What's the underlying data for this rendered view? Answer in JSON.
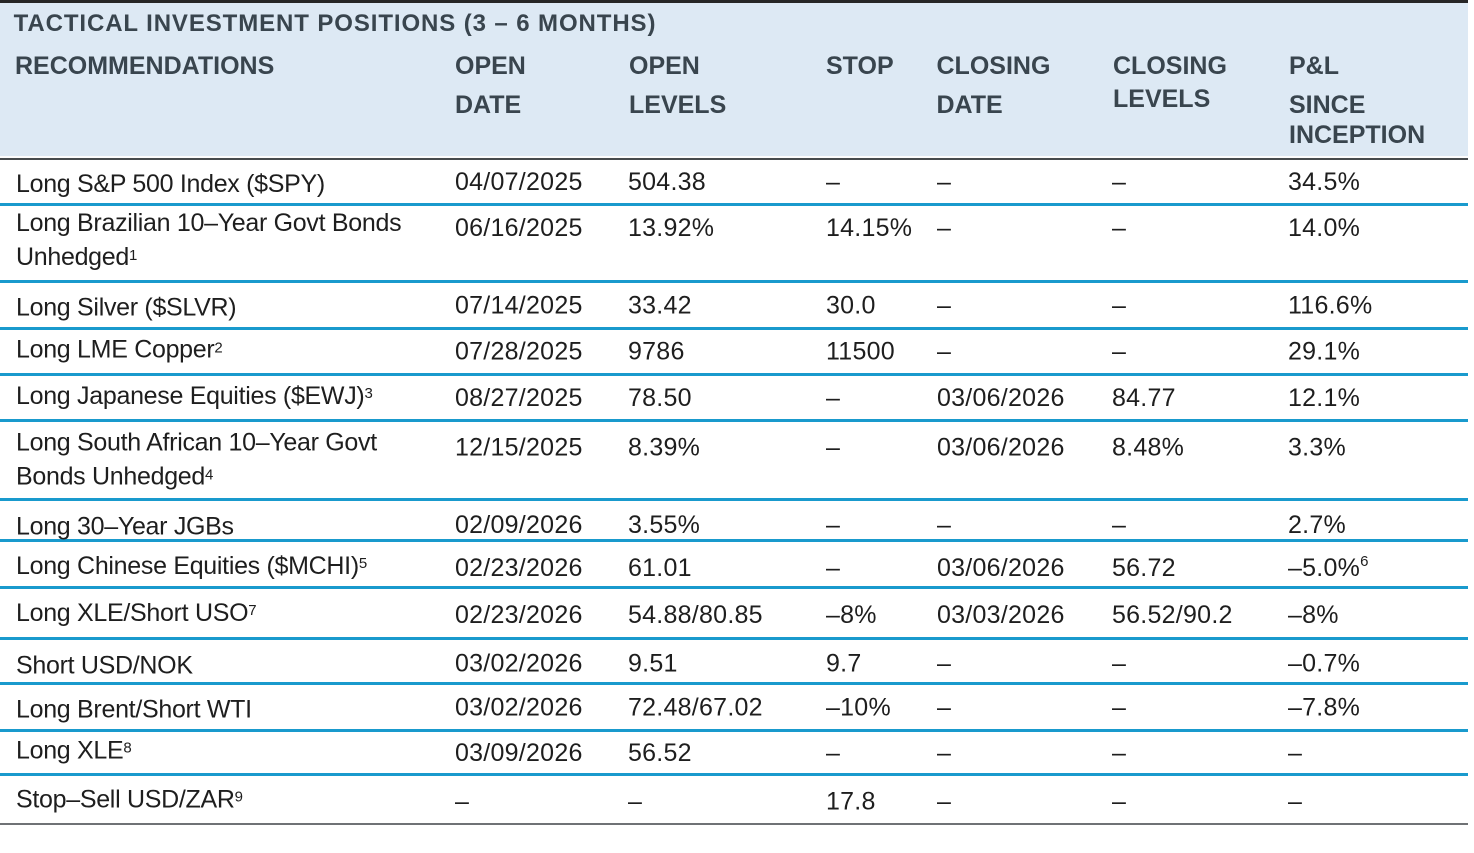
{
  "title": "TACTICAL INVESTMENT POSITIONS (3 - 6 MONTHS)",
  "header": {
    "columns": [
      {
        "id": "recommendations",
        "lines": [
          "RECOMMENDATIONS"
        ]
      },
      {
        "id": "open-date",
        "lines": [
          "OPEN",
          "DATE"
        ]
      },
      {
        "id": "open-levels",
        "lines": [
          "OPEN",
          "LEVELS"
        ]
      },
      {
        "id": "stop",
        "lines": [
          "STOP"
        ]
      },
      {
        "id": "closing-date",
        "lines": [
          "CLOSING",
          "DATE"
        ]
      },
      {
        "id": "closing-levels",
        "lines": [
          "CLOSING",
          "LEVELS"
        ]
      },
      {
        "id": "pnl-since-inception",
        "lines": [
          "P&L",
          "SINCE",
          "INCEPTION"
        ]
      }
    ]
  },
  "rows": [
    {
      "recommendation": {
        "lines": [
          {
            "text": "Long S&P 500 Index ($SPY)"
          }
        ]
      },
      "open_date": "04/07/2025",
      "open_levels": "504.38",
      "stop": "-",
      "closing_date": "-",
      "closing_levels": "-",
      "pnl": {
        "text": "34.5%"
      }
    },
    {
      "recommendation": {
        "lines": [
          {
            "text": "Long Brazilian 10-Year Govt Bonds"
          },
          {
            "text": "Unhedged",
            "sup": "1"
          }
        ]
      },
      "open_date": "06/16/2025",
      "open_levels": "13.92%",
      "stop": "14.15%",
      "closing_date": "-",
      "closing_levels": "-",
      "pnl": {
        "text": "14.0%"
      }
    },
    {
      "recommendation": {
        "lines": [
          {
            "text": "Long Silver ($SLVR)"
          }
        ]
      },
      "open_date": "07/14/2025",
      "open_levels": "33.42",
      "stop": "30.0",
      "closing_date": "-",
      "closing_levels": "-",
      "pnl": {
        "text": "116.6%"
      }
    },
    {
      "recommendation": {
        "lines": [
          {
            "text": "Long LME Copper",
            "sup": "2"
          }
        ]
      },
      "open_date": "07/28/2025",
      "open_levels": "9786",
      "stop": "11500",
      "closing_date": "-",
      "closing_levels": "-",
      "pnl": {
        "text": "29.1%"
      }
    },
    {
      "recommendation": {
        "lines": [
          {
            "text": "Long Japanese Equities ($EWJ)",
            "sup": "3"
          }
        ]
      },
      "open_date": "08/27/2025",
      "open_levels": "78.50",
      "stop": "-",
      "closing_date": "03/06/2026",
      "closing_levels": "84.77",
      "pnl": {
        "text": "12.1%"
      }
    },
    {
      "recommendation": {
        "lines": [
          {
            "text": "Long South African 10-Year Govt"
          },
          {
            "text": "Bonds Unhedged",
            "sup": "4"
          }
        ]
      },
      "open_date": "12/15/2025",
      "open_levels": "8.39%",
      "stop": "-",
      "closing_date": "03/06/2026",
      "closing_levels": "8.48%",
      "pnl": {
        "text": "3.3%"
      }
    },
    {
      "recommendation": {
        "lines": [
          {
            "text": "Long 30-Year JGBs"
          }
        ]
      },
      "open_date": "02/09/2026",
      "open_levels": "3.55%",
      "stop": "-",
      "closing_date": "-",
      "closing_levels": "-",
      "pnl": {
        "text": "2.7%"
      }
    },
    {
      "recommendation": {
        "lines": [
          {
            "text": "Long Chinese Equities ($MCHI)",
            "sup": "5"
          }
        ]
      },
      "open_date": "02/23/2026",
      "open_levels": "61.01",
      "stop": "-",
      "closing_date": "03/06/2026",
      "closing_levels": "56.72",
      "pnl": {
        "text": "-5.0%",
        "sup": "6"
      }
    },
    {
      "recommendation": {
        "lines": [
          {
            "text": "Long XLE/Short USO",
            "sup": "7"
          }
        ]
      },
      "open_date": "02/23/2026",
      "open_levels": "54.88/80.85",
      "stop": "-8%",
      "closing_date": "03/03/2026",
      "closing_levels": "56.52/90.2",
      "pnl": {
        "text": "-8%"
      }
    },
    {
      "recommendation": {
        "lines": [
          {
            "text": "Short USD/NOK"
          }
        ]
      },
      "open_date": "03/02/2026",
      "open_levels": "9.51",
      "stop": "9.7",
      "closing_date": "-",
      "closing_levels": "-",
      "pnl": {
        "text": "-0.7%"
      }
    },
    {
      "recommendation": {
        "lines": [
          {
            "text": "Long Brent/Short WTI"
          }
        ]
      },
      "open_date": "03/02/2026",
      "open_levels": "72.48/67.02",
      "stop": "-10%",
      "closing_date": "-",
      "closing_levels": "-",
      "pnl": {
        "text": "-7.8%"
      }
    },
    {
      "recommendation": {
        "lines": [
          {
            "text": "Long XLE",
            "sup": "8"
          }
        ]
      },
      "open_date": "03/09/2026",
      "open_levels": "56.52",
      "stop": "-",
      "closing_date": "-",
      "closing_levels": "-",
      "pnl": {
        "text": "-"
      }
    },
    {
      "recommendation": {
        "lines": [
          {
            "text": "Stop-Sell USD/ZAR",
            "sup": "9"
          }
        ]
      },
      "open_date": "-",
      "open_levels": "-",
      "stop": "17.8",
      "closing_date": "-",
      "closing_levels": "-",
      "pnl": {
        "text": "-"
      }
    }
  ],
  "colors": {
    "accent_cyan": "#199acd",
    "header_background": "#dde9f4",
    "rule_top": "#262626",
    "rule_header_bottom": "#474b4d",
    "rule_table_bottom": "#6f7275",
    "header_text": "#39454e",
    "body_text": "#1e1e1e"
  }
}
